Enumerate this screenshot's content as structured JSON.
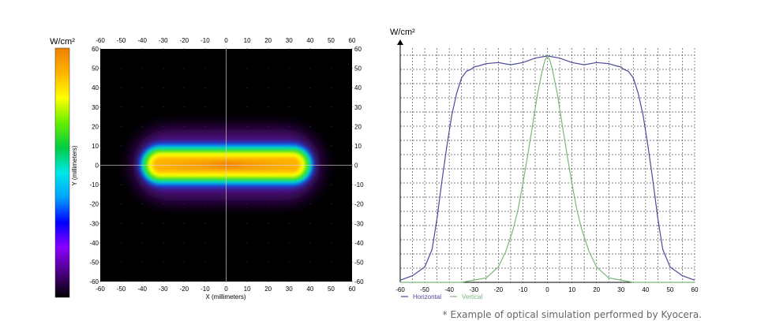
{
  "caption": "* Example of optical simulation performed by Kyocera.",
  "chart_data": [
    {
      "type": "heatmap",
      "colorbar_label": "W/cm²",
      "xlabel": "X (millimeters)",
      "ylabel": "Y (millimeters)",
      "x_ticks": [
        -60,
        -50,
        -40,
        -30,
        -20,
        -10,
        0,
        10,
        20,
        30,
        40,
        50,
        60
      ],
      "y_ticks": [
        60,
        50,
        40,
        30,
        20,
        10,
        0,
        -10,
        -20,
        -30,
        -40,
        -50,
        -60
      ],
      "xlim": [
        -60,
        60
      ],
      "ylim": [
        -60,
        60
      ],
      "colormap": [
        "#000000",
        "#4b0082",
        "#8b00ff",
        "#0000ff",
        "#00a0ff",
        "#00e8e8",
        "#00cc44",
        "#66ee00",
        "#ffff00",
        "#ffb400",
        "#f08000"
      ],
      "spot": {
        "shape": "rounded rectangle",
        "x_range": [
          -45,
          45
        ],
        "y_range": [
          -11,
          11
        ],
        "peak_x": [
          -10,
          10
        ],
        "peak_y": 0
      }
    },
    {
      "type": "line",
      "ylabel": "W/cm²",
      "x_ticks": [
        -60,
        -50,
        -40,
        -30,
        -20,
        -10,
        0,
        10,
        20,
        30,
        40,
        50,
        60
      ],
      "xlim": [
        -60,
        60
      ],
      "ylim": [
        0,
        1.08
      ],
      "grid": true,
      "legend_position": "bottom-left",
      "series": [
        {
          "name": "Horizontal",
          "color": "#4a4a9a",
          "x": [
            -60,
            -55,
            -50,
            -47,
            -45,
            -43,
            -41,
            -39,
            -37,
            -35,
            -33,
            -31,
            -30,
            -28,
            -25,
            -20,
            -15,
            -10,
            -5,
            0,
            5,
            10,
            15,
            20,
            25,
            28,
            30,
            31,
            33,
            35,
            37,
            39,
            41,
            43,
            45,
            47,
            50,
            55,
            60
          ],
          "values": [
            0.01,
            0.03,
            0.07,
            0.15,
            0.29,
            0.46,
            0.62,
            0.76,
            0.86,
            0.93,
            0.96,
            0.97,
            0.98,
            0.985,
            0.995,
            1.0,
            0.99,
            1.0,
            1.02,
            1.03,
            1.02,
            1.0,
            0.99,
            1.0,
            0.995,
            0.985,
            0.98,
            0.97,
            0.96,
            0.93,
            0.86,
            0.76,
            0.62,
            0.46,
            0.29,
            0.15,
            0.07,
            0.03,
            0.01
          ]
        },
        {
          "name": "Vertical",
          "color": "#7ab87a",
          "x": [
            -60,
            -35,
            -25,
            -20,
            -17,
            -14,
            -12,
            -10,
            -8,
            -6,
            -4,
            -2,
            -1,
            0,
            1,
            2,
            4,
            6,
            8,
            10,
            12,
            14,
            17,
            20,
            25,
            35,
            60
          ],
          "values": [
            0.0,
            0.0,
            0.02,
            0.07,
            0.14,
            0.24,
            0.33,
            0.45,
            0.58,
            0.72,
            0.86,
            0.97,
            1.01,
            1.03,
            1.01,
            0.97,
            0.86,
            0.72,
            0.58,
            0.45,
            0.33,
            0.24,
            0.14,
            0.07,
            0.02,
            0.0,
            0.0
          ]
        }
      ]
    }
  ]
}
